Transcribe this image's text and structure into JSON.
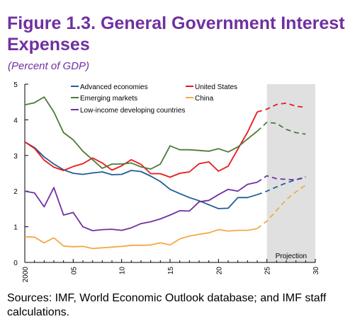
{
  "figure": {
    "title": "Figure 1.3. General Government Interest Expenses",
    "subtitle": "(Percent of GDP)",
    "source": "Sources: IMF, World Economic Outlook database; and IMF staff calculations."
  },
  "chart_data": {
    "type": "line",
    "xlim": [
      2000,
      2030
    ],
    "ylim": [
      0,
      5
    ],
    "x_ticks": [
      2000,
      2005,
      2010,
      2015,
      2020,
      2025,
      2030
    ],
    "x_tick_labels": [
      "2000",
      "05",
      "10",
      "15",
      "20",
      "25",
      "30"
    ],
    "y_ticks": [
      0,
      1,
      2,
      3,
      4,
      5
    ],
    "y_tick_labels": [
      "0",
      "1",
      "2",
      "3",
      "4",
      "5"
    ],
    "grid": false,
    "projection": {
      "from": 2025,
      "to": 2030,
      "label": "Projection",
      "color": "#e0e0e0"
    },
    "legend_placement": "top",
    "series": [
      {
        "name": "Advanced economies",
        "color": "#1f5c99",
        "x": [
          2000,
          2001,
          2002,
          2003,
          2004,
          2005,
          2006,
          2007,
          2008,
          2009,
          2010,
          2011,
          2012,
          2013,
          2014,
          2015,
          2016,
          2017,
          2018,
          2019,
          2020,
          2021,
          2022,
          2023,
          2024,
          2025,
          2026,
          2027,
          2028,
          2029
        ],
        "values": [
          3.38,
          3.22,
          2.96,
          2.76,
          2.6,
          2.5,
          2.47,
          2.51,
          2.54,
          2.46,
          2.47,
          2.58,
          2.55,
          2.42,
          2.27,
          2.05,
          1.93,
          1.82,
          1.73,
          1.62,
          1.51,
          1.52,
          1.82,
          1.82,
          1.9,
          2.0,
          2.12,
          2.23,
          2.32,
          2.4
        ]
      },
      {
        "name": "United States",
        "color": "#e8191b",
        "x": [
          2000,
          2001,
          2002,
          2003,
          2004,
          2005,
          2006,
          2007,
          2008,
          2009,
          2010,
          2011,
          2012,
          2013,
          2014,
          2015,
          2016,
          2017,
          2018,
          2019,
          2020,
          2021,
          2022,
          2023,
          2024,
          2025,
          2026,
          2027,
          2028,
          2029
        ],
        "values": [
          3.38,
          3.2,
          2.87,
          2.67,
          2.58,
          2.69,
          2.77,
          2.93,
          2.79,
          2.59,
          2.71,
          2.88,
          2.75,
          2.49,
          2.49,
          2.39,
          2.5,
          2.54,
          2.77,
          2.82,
          2.56,
          2.7,
          3.18,
          3.65,
          4.22,
          4.3,
          4.43,
          4.47,
          4.38,
          4.35
        ]
      },
      {
        "name": "Emerging markets",
        "color": "#4d7a3a",
        "x": [
          2000,
          2001,
          2002,
          2003,
          2004,
          2005,
          2006,
          2007,
          2008,
          2009,
          2010,
          2011,
          2012,
          2013,
          2014,
          2015,
          2016,
          2017,
          2018,
          2019,
          2020,
          2021,
          2022,
          2023,
          2024,
          2025,
          2026,
          2027,
          2028,
          2029
        ],
        "values": [
          4.42,
          4.48,
          4.64,
          4.22,
          3.64,
          3.44,
          3.12,
          2.88,
          2.64,
          2.76,
          2.76,
          2.79,
          2.68,
          2.62,
          2.76,
          3.27,
          3.16,
          3.16,
          3.14,
          3.12,
          3.19,
          3.1,
          3.24,
          3.46,
          3.68,
          3.93,
          3.9,
          3.73,
          3.64,
          3.6
        ]
      },
      {
        "name": "China",
        "color": "#f5a847",
        "x": [
          2000,
          2001,
          2002,
          2003,
          2004,
          2005,
          2006,
          2007,
          2008,
          2009,
          2010,
          2011,
          2012,
          2013,
          2014,
          2015,
          2016,
          2017,
          2018,
          2019,
          2020,
          2021,
          2022,
          2023,
          2024,
          2025,
          2026,
          2027,
          2028,
          2029
        ],
        "values": [
          0.72,
          0.71,
          0.55,
          0.69,
          0.46,
          0.44,
          0.45,
          0.39,
          0.41,
          0.43,
          0.45,
          0.48,
          0.48,
          0.49,
          0.55,
          0.49,
          0.66,
          0.74,
          0.79,
          0.83,
          0.92,
          0.88,
          0.9,
          0.9,
          0.95,
          1.16,
          1.46,
          1.76,
          1.98,
          2.17
        ]
      },
      {
        "name": "Low-income developing countries",
        "color": "#7030a0",
        "x": [
          2000,
          2001,
          2002,
          2003,
          2004,
          2005,
          2006,
          2007,
          2008,
          2009,
          2010,
          2011,
          2012,
          2013,
          2014,
          2015,
          2016,
          2017,
          2018,
          2019,
          2020,
          2021,
          2022,
          2023,
          2024,
          2025,
          2026,
          2027,
          2028,
          2029
        ],
        "values": [
          2.0,
          1.95,
          1.56,
          2.1,
          1.33,
          1.4,
          1.0,
          0.89,
          0.92,
          0.93,
          0.9,
          0.97,
          1.09,
          1.14,
          1.22,
          1.33,
          1.45,
          1.44,
          1.7,
          1.74,
          1.9,
          2.05,
          2.0,
          2.19,
          2.25,
          2.43,
          2.35,
          2.33,
          2.32,
          2.38
        ]
      }
    ]
  }
}
